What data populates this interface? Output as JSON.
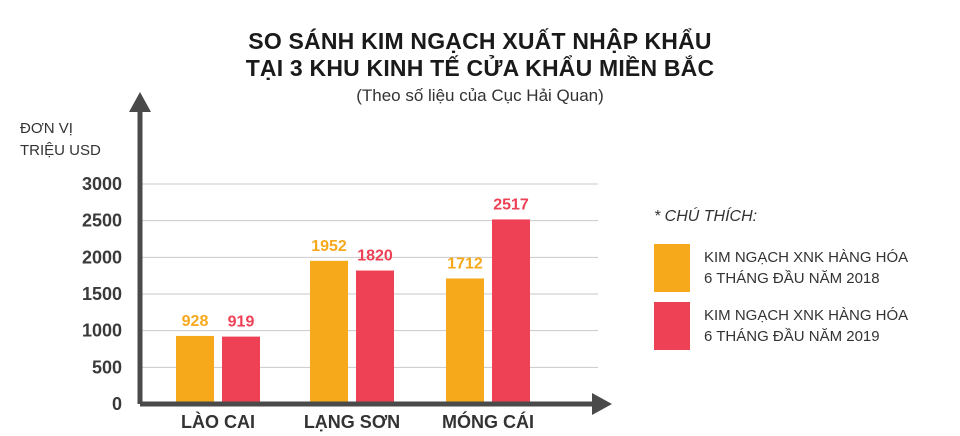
{
  "header": {
    "title_line1": "SO SÁNH KIM NGẠCH XUẤT NHẬP KHẨU",
    "title_line2": "TẠI 3 KHU KINH TẾ CỬA KHẨU MIỀN BẮC",
    "subtitle": "(Theo số liệu của Cục Hải Quan)"
  },
  "unit_label": {
    "line1": "ĐƠN VỊ",
    "line2": "TRIỆU USD"
  },
  "legend": {
    "title": "* CHÚ THÍCH:",
    "items": [
      {
        "line1": "KIM NGẠCH XNK HÀNG HÓA",
        "line2": "6 THÁNG ĐẦU NĂM 2018",
        "color": "#f5a91b"
      },
      {
        "line1": "KIM NGẠCH XNK HÀNG HÓA",
        "line2": "6 THÁNG ĐẦU NĂM 2019",
        "color": "#ee4155"
      }
    ]
  },
  "chart_data": {
    "type": "bar",
    "categories": [
      "LÀO CAI",
      "LẠNG SƠN",
      "MÓNG CÁI"
    ],
    "series": [
      {
        "name": "KIM NGẠCH XNK HÀNG HÓA 6 THÁNG ĐẦU NĂM 2018",
        "values": [
          928,
          1952,
          1712
        ],
        "color": "#f5a91b"
      },
      {
        "name": "KIM NGẠCH XNK HÀNG HÓA 6 THÁNG ĐẦU NĂM 2019",
        "values": [
          919,
          1820,
          2517
        ],
        "color": "#ee4155"
      }
    ],
    "y_ticks": [
      0,
      500,
      1000,
      1500,
      2000,
      2500,
      3000
    ],
    "ylim": [
      0,
      3000
    ],
    "grid": true,
    "legend_position": "right"
  }
}
